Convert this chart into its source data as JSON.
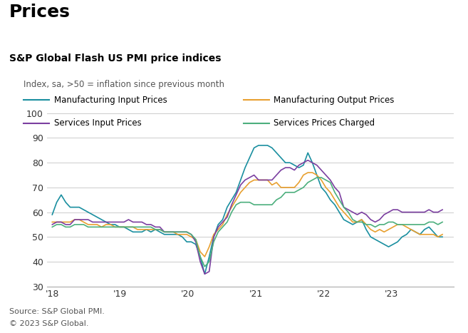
{
  "title": "Prices",
  "subtitle": "S&P Global Flash US PMI price indices",
  "note": "Index, sa, >50 = inflation since previous month",
  "source_lines": [
    "Source: S&P Global PMI.",
    "© 2023 S&P Global."
  ],
  "ylim": [
    30,
    100
  ],
  "yticks": [
    30,
    40,
    50,
    60,
    70,
    80,
    90,
    100
  ],
  "xtick_labels": [
    "'18",
    "'19",
    "'20",
    "'21",
    "'22",
    "'23"
  ],
  "colors": {
    "mfg_input": "#1a8fa0",
    "mfg_output": "#e8a030",
    "svc_input": "#7b3fa0",
    "svc_charged": "#4caf7d"
  },
  "legend": [
    "Manufacturing Input Prices",
    "Manufacturing Output Prices",
    "Services Input Prices",
    "Services Prices Charged"
  ],
  "mfg_input": [
    59,
    64,
    67,
    64,
    62,
    62,
    62,
    61,
    60,
    59,
    58,
    57,
    56,
    55,
    55,
    54,
    54,
    53,
    52,
    52,
    52,
    53,
    52,
    53,
    52,
    51,
    51,
    51,
    51,
    50,
    48,
    48,
    47,
    42,
    35,
    42,
    50,
    55,
    57,
    62,
    65,
    68,
    73,
    78,
    82,
    86,
    87,
    87,
    87,
    86,
    84,
    82,
    80,
    80,
    79,
    78,
    79,
    84,
    80,
    75,
    70,
    68,
    65,
    63,
    60,
    57,
    56,
    55,
    56,
    57,
    53,
    50,
    49,
    48,
    47,
    46,
    47,
    48,
    50,
    51,
    53,
    52,
    51,
    53,
    54,
    52,
    50,
    50
  ],
  "mfg_output": [
    56,
    56,
    56,
    56,
    56,
    57,
    57,
    56,
    55,
    55,
    55,
    54,
    55,
    55,
    54,
    54,
    54,
    54,
    54,
    53,
    53,
    53,
    53,
    53,
    53,
    52,
    52,
    52,
    51,
    51,
    51,
    50,
    49,
    44,
    42,
    46,
    51,
    53,
    55,
    59,
    62,
    65,
    68,
    70,
    72,
    73,
    73,
    73,
    73,
    71,
    72,
    70,
    70,
    70,
    70,
    72,
    75,
    76,
    76,
    75,
    73,
    70,
    68,
    65,
    62,
    60,
    58,
    56,
    56,
    57,
    55,
    53,
    52,
    53,
    52,
    53,
    54,
    55,
    55,
    54,
    53,
    52,
    51,
    51,
    51,
    51,
    50,
    51
  ],
  "svc_input": [
    55,
    56,
    56,
    55,
    55,
    57,
    57,
    57,
    57,
    56,
    56,
    56,
    56,
    56,
    56,
    56,
    56,
    57,
    56,
    56,
    56,
    55,
    55,
    54,
    54,
    52,
    52,
    52,
    52,
    52,
    52,
    51,
    48,
    40,
    35,
    36,
    50,
    54,
    56,
    58,
    63,
    67,
    71,
    73,
    74,
    75,
    73,
    73,
    73,
    73,
    75,
    77,
    78,
    78,
    77,
    79,
    80,
    81,
    80,
    79,
    77,
    75,
    73,
    70,
    68,
    62,
    61,
    60,
    59,
    60,
    59,
    57,
    56,
    57,
    59,
    60,
    61,
    61,
    60,
    60,
    60,
    60,
    60,
    60,
    61,
    60,
    60,
    61
  ],
  "svc_charged": [
    54,
    55,
    55,
    54,
    54,
    55,
    55,
    55,
    54,
    54,
    54,
    54,
    54,
    54,
    54,
    54,
    54,
    54,
    54,
    54,
    54,
    54,
    54,
    53,
    53,
    52,
    52,
    52,
    52,
    52,
    52,
    51,
    49,
    42,
    38,
    40,
    48,
    52,
    54,
    56,
    60,
    63,
    64,
    64,
    64,
    63,
    63,
    63,
    63,
    63,
    65,
    66,
    68,
    68,
    68,
    69,
    70,
    72,
    73,
    74,
    74,
    73,
    72,
    68,
    65,
    62,
    60,
    57,
    56,
    56,
    55,
    55,
    54,
    55,
    55,
    56,
    56,
    55,
    55,
    55,
    55,
    55,
    55,
    55,
    56,
    56,
    55,
    56
  ]
}
